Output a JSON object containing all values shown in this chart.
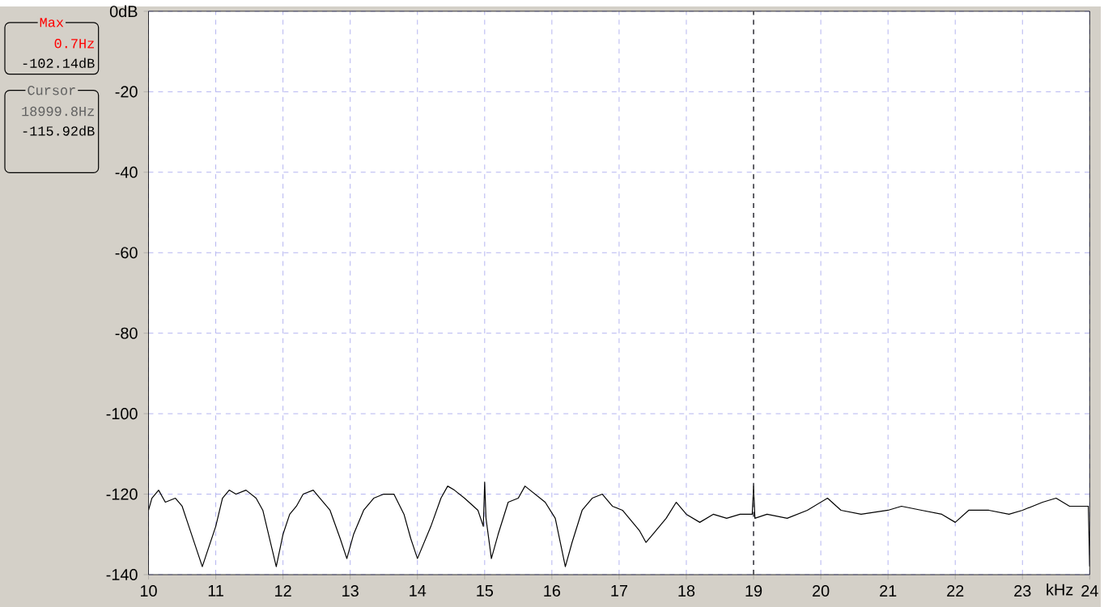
{
  "chart_data": {
    "type": "line",
    "xlabel": "kHz",
    "xlim": [
      10,
      24
    ],
    "ylim": [
      -140,
      0
    ],
    "xticks": [
      10,
      11,
      12,
      13,
      14,
      15,
      16,
      17,
      18,
      19,
      20,
      21,
      22,
      23,
      24
    ],
    "yticks": [
      {
        "value": 0,
        "label": "0dB"
      },
      -20,
      -40,
      -60,
      -80,
      -100,
      -120,
      -140
    ],
    "grid": true,
    "marker": "none",
    "line_style": "solid",
    "ref_lines": [
      {
        "axis": "x",
        "value": 19,
        "color": "#404040",
        "line_style": "dashed"
      }
    ],
    "annotations": [
      "Max",
      "0.7Hz",
      "-102.14dB",
      "Cursor",
      "18999.8Hz",
      "-115.92dB"
    ],
    "x": [
      10.0,
      10.05,
      10.15,
      10.25,
      10.4,
      10.5,
      10.6,
      10.7,
      10.8,
      10.9,
      11.0,
      11.1,
      11.2,
      11.3,
      11.45,
      11.6,
      11.7,
      11.8,
      11.9,
      12.0,
      12.1,
      12.2,
      12.3,
      12.45,
      12.55,
      12.7,
      12.85,
      12.95,
      13.05,
      13.2,
      13.35,
      13.5,
      13.65,
      13.8,
      13.9,
      14.0,
      14.1,
      14.2,
      14.35,
      14.45,
      14.55,
      14.7,
      14.9,
      14.98,
      15.0,
      15.02,
      15.1,
      15.2,
      15.35,
      15.5,
      15.6,
      15.75,
      15.9,
      16.05,
      16.15,
      16.2,
      16.3,
      16.45,
      16.6,
      16.75,
      16.9,
      17.05,
      17.15,
      17.3,
      17.4,
      17.5,
      17.7,
      17.85,
      18.0,
      18.2,
      18.4,
      18.6,
      18.8,
      18.98,
      19.0,
      19.02,
      19.2,
      19.5,
      19.8,
      20.1,
      20.3,
      20.6,
      21.0,
      21.2,
      21.5,
      21.8,
      22.0,
      22.2,
      22.5,
      22.8,
      23.0,
      23.3,
      23.5,
      23.7,
      23.9,
      23.98,
      24.0
    ],
    "series": [
      {
        "color": "#000000",
        "values": [
          -124,
          -121,
          -119,
          -122,
          -121,
          -123,
          -128,
          -133,
          -138,
          -133,
          -128,
          -121,
          -119,
          -120,
          -119,
          -121,
          -124,
          -131,
          -138,
          -130,
          -125,
          -123,
          -120,
          -119,
          -121,
          -124,
          -131,
          -136,
          -130,
          -124,
          -121,
          -120,
          -120,
          -125,
          -131,
          -136,
          -132,
          -128,
          -121,
          -118,
          -119,
          -121,
          -124,
          -128,
          -117,
          -126,
          -136,
          -130,
          -122,
          -121,
          -118,
          -120,
          -122,
          -126,
          -134,
          -138,
          -132,
          -124,
          -121,
          -120,
          -123,
          -124,
          -126,
          -129,
          -132,
          -130,
          -126,
          -122,
          -125,
          -127,
          -125,
          -126,
          -125,
          -125,
          -118,
          -126,
          -125,
          -126,
          -124,
          -121,
          -124,
          -125,
          -124,
          -123,
          -124,
          -125,
          -127,
          -124,
          -124,
          -125,
          -124,
          -122,
          -121,
          -123,
          -123,
          -123,
          -138
        ]
      }
    ]
  }
}
